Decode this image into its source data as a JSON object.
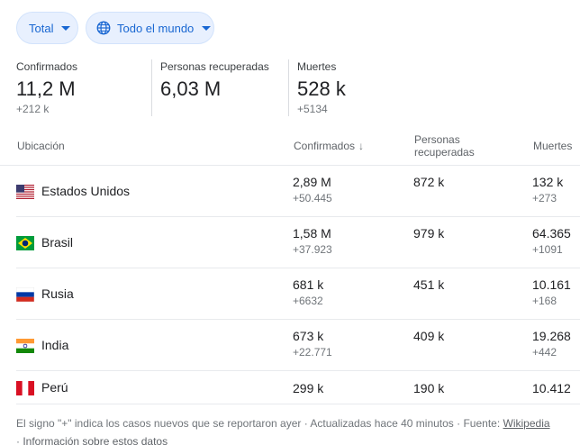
{
  "filters": {
    "total_label": "Total",
    "world_label": "Todo el mundo"
  },
  "stats": [
    {
      "label": "Confirmados",
      "value": "11,2 M",
      "delta": "+212 k"
    },
    {
      "label": "Personas recuperadas",
      "value": "6,03 M",
      "delta": ""
    },
    {
      "label": "Muertes",
      "value": "528 k",
      "delta": "+5134"
    }
  ],
  "table": {
    "headers": {
      "location": "Ubicación",
      "confirmed": "Confirmados",
      "recovered": "Personas recuperadas",
      "deaths": "Muertes"
    },
    "rows": [
      {
        "country": "Estados Unidos",
        "flag": "us",
        "confirmed": "2,89 M",
        "confirmed_delta": "+50.445",
        "recovered": "872 k",
        "deaths": "132 k",
        "deaths_delta": "+273"
      },
      {
        "country": "Brasil",
        "flag": "br",
        "confirmed": "1,58 M",
        "confirmed_delta": "+37.923",
        "recovered": "979 k",
        "deaths": "64.365",
        "deaths_delta": "+1091"
      },
      {
        "country": "Rusia",
        "flag": "ru",
        "confirmed": "681 k",
        "confirmed_delta": "+6632",
        "recovered": "451 k",
        "deaths": "10.161",
        "deaths_delta": "+168"
      },
      {
        "country": "India",
        "flag": "in",
        "confirmed": "673 k",
        "confirmed_delta": "+22.771",
        "recovered": "409 k",
        "deaths": "19.268",
        "deaths_delta": "+442"
      },
      {
        "country": "Perú",
        "flag": "pe",
        "confirmed": "299 k",
        "confirmed_delta": "",
        "recovered": "190 k",
        "deaths": "10.412",
        "deaths_delta": ""
      }
    ]
  },
  "footer": {
    "note": "El signo \"+\" indica los casos nuevos que se reportaron ayer · Actualizadas hace 40 minutos",
    "source_prefix": "· Fuente:",
    "source_link": "Wikipedia",
    "info_prefix": "·",
    "info_link": "Información sobre estos datos"
  },
  "colors": {
    "chip_bg": "#e8f0fe",
    "chip_text": "#1967d2",
    "divider": "#e8eaed"
  }
}
